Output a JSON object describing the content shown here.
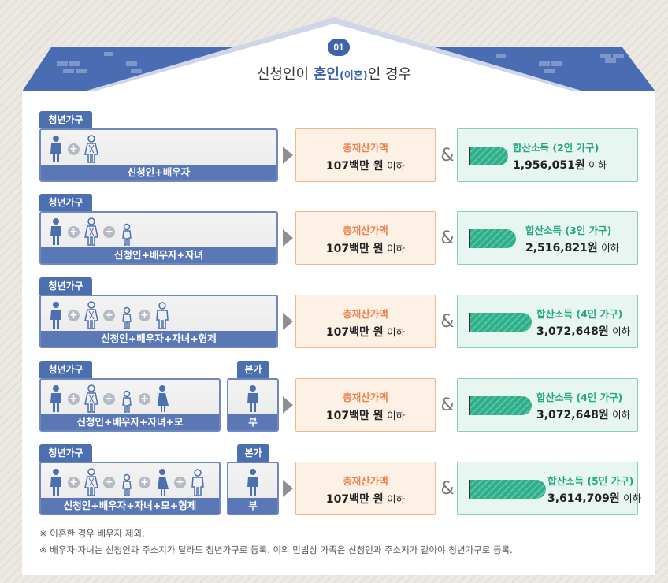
{
  "header": {
    "badge": "01",
    "title_pre": "신청인이 ",
    "title_hl": "혼인",
    "title_small": "(이혼)",
    "title_post": "인 경우"
  },
  "colors": {
    "roof": "#4a6cb3",
    "tag": "#4c6fb0",
    "asset_border": "#f2b68a",
    "asset_title": "#ee7f4a",
    "income_border": "#7fd1b8",
    "income_title": "#23a77f"
  },
  "rows": [
    {
      "tag": "청년가구",
      "caption": "신청인+배우자",
      "asset_title": "총재산가액",
      "asset_amount": "107백만 원",
      "asset_suffix": "이하",
      "amp": "&",
      "income_title": "합산소득 (2인 가구)",
      "income_amount": "1,956,051원",
      "income_suffix": "이하"
    },
    {
      "tag": "청년가구",
      "caption": "신청인+배우자+자녀",
      "asset_title": "총재산가액",
      "asset_amount": "107백만 원",
      "asset_suffix": "이하",
      "amp": "&",
      "income_title": "합산소득 (3인 가구)",
      "income_amount": "2,516,821원",
      "income_suffix": "이하"
    },
    {
      "tag": "청년가구",
      "caption": "신청인+배우자+자녀+형제",
      "asset_title": "총재산가액",
      "asset_amount": "107백만 원",
      "asset_suffix": "이하",
      "amp": "&",
      "income_title": "합산소득 (4인 가구)",
      "income_amount": "3,072,648원",
      "income_suffix": "이하"
    },
    {
      "tag": "청년가구",
      "caption": "신청인+배우자+자녀+모",
      "extra_tag": "본가",
      "extra_caption": "부",
      "asset_title": "총재산가액",
      "asset_amount": "107백만 원",
      "asset_suffix": "이하",
      "amp": "&",
      "income_title": "합산소득 (4인 가구)",
      "income_amount": "3,072,648원",
      "income_suffix": "이하"
    },
    {
      "tag": "청년가구",
      "caption": "신청인+배우자+자녀+모+형제",
      "extra_tag": "본가",
      "extra_caption": "부",
      "asset_title": "총재산가액",
      "asset_amount": "107백만 원",
      "asset_suffix": "이하",
      "amp": "&",
      "income_title": "합산소득 (5인 가구)",
      "income_amount": "3,614,709원",
      "income_suffix": "이하"
    }
  ],
  "notes": [
    "※ 이혼한 경우 배우자 제외.",
    "※ 배우자·자녀는 신청인과 주소지가 달라도 청년가구로 등록. 이외 민법상 가족은 신청인과 주소지가 같아야 청년가구로 등록."
  ]
}
